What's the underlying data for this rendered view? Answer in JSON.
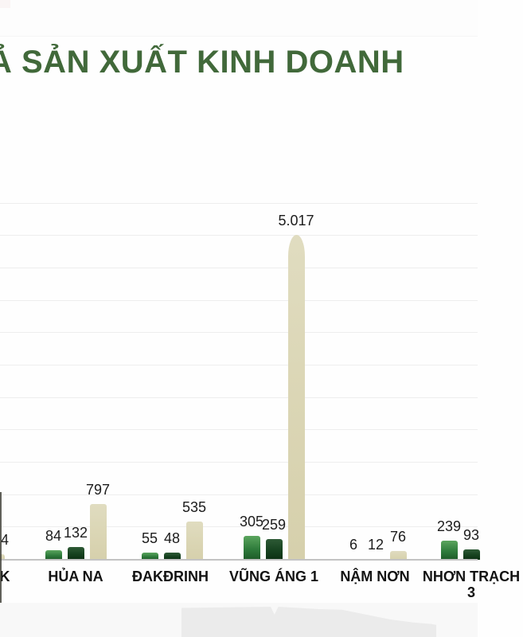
{
  "title": {
    "text": "Ả SẢN XUẤT KINH DOANH",
    "note": "",
    "color": "#41693a"
  },
  "chart_data": {
    "type": "bar",
    "title": "Ả SẢN XUẤT KINH DOANH",
    "categories": [
      "K",
      "HỦA NA",
      "ĐAKĐRINH",
      "VŨNG ÁNG 1",
      "NẬM NƠN",
      "NHƠN TRẠCH 3"
    ],
    "series": [
      {
        "name": "series-green",
        "values": [
          null,
          84,
          55,
          305,
          6,
          239
        ],
        "labels": [
          "",
          "84",
          "55",
          "305",
          "6",
          "239"
        ]
      },
      {
        "name": "series-dark-green",
        "values": [
          null,
          132,
          48,
          259,
          12,
          93
        ],
        "labels": [
          "",
          "132",
          "48",
          "259",
          "12",
          "93"
        ]
      },
      {
        "name": "series-beige",
        "values": [
          null,
          797,
          535,
          5017,
          76,
          null
        ],
        "labels": [
          "4",
          "797",
          "535",
          "5.017",
          "76",
          ""
        ]
      }
    ],
    "ylim": [
      0,
      5500
    ],
    "grid": "horizontal faint lines every 500 units",
    "legend_position": "none",
    "xlabel": "",
    "ylabel": ""
  },
  "colors": {
    "title_green": "#41693a",
    "bar_green_top": "#5ba55e",
    "bar_green_bottom": "#1d5a28",
    "bar_dark_green_top": "#2e5a36",
    "bar_dark_green_bottom": "#0c2f13",
    "bar_beige": "#dbd6b5",
    "gridline": "#eeeeee",
    "axis_line": "#c3c3c3",
    "value_text": "#1c1c1c",
    "category_text": "#121212"
  }
}
